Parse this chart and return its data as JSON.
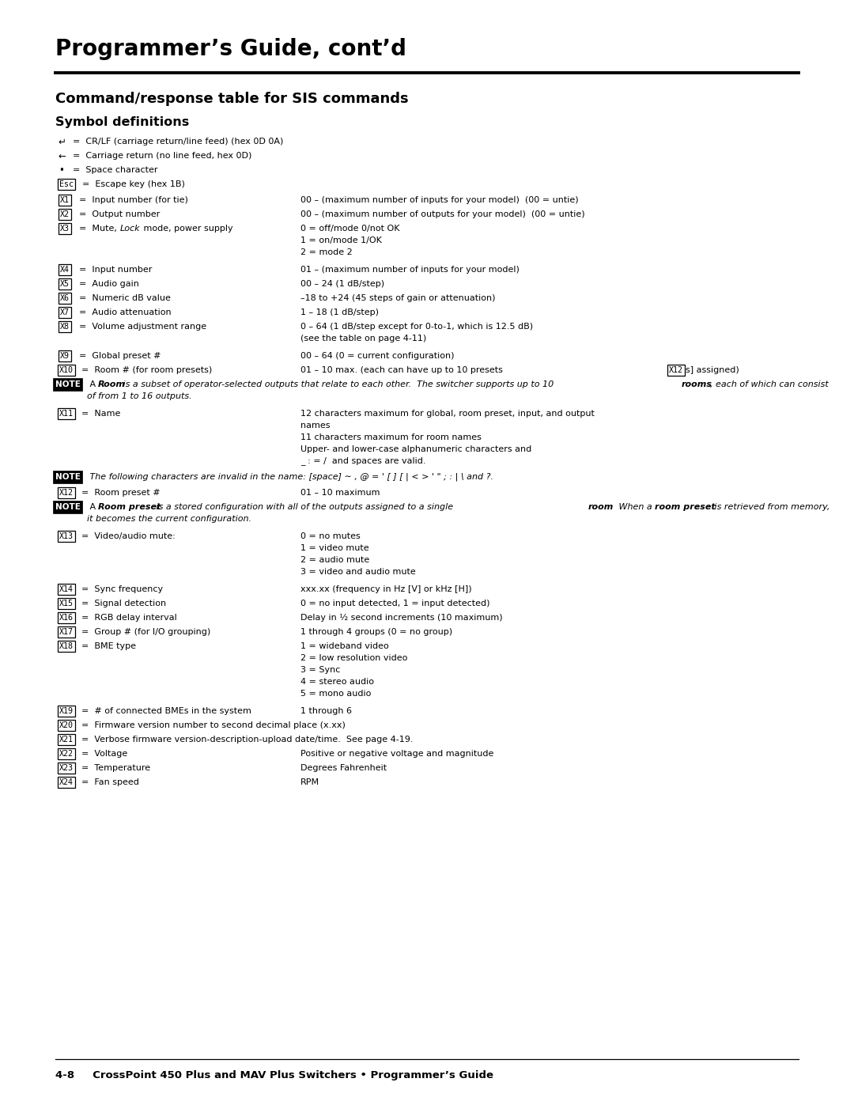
{
  "title": "Programmer’s Guide, cont’d",
  "section_title": "Command/response table for SIS commands",
  "subsection_title": "Symbol definitions",
  "footer": "4-8     CrossPoint 450 Plus and MAV Plus Switchers • Programmer’s Guide",
  "bg_color": "#ffffff",
  "text_color": "#000000"
}
